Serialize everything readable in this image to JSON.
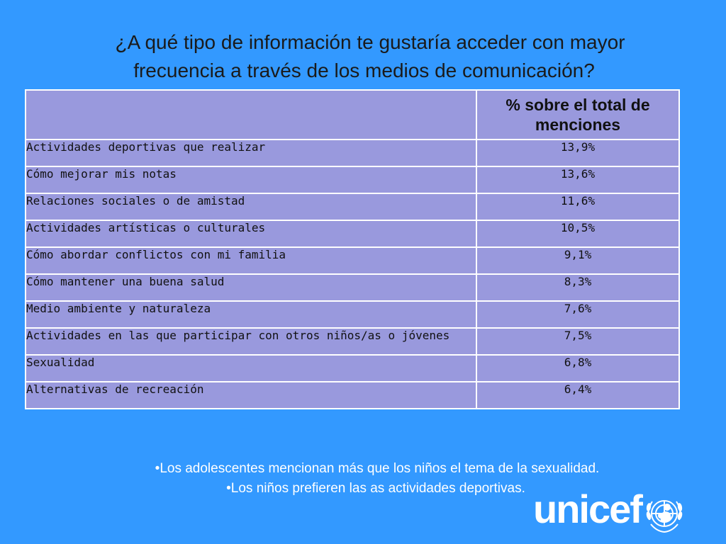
{
  "title": {
    "line1": "¿A qué tipo de información te gustaría acceder con mayor",
    "line2": "frecuencia a través de los medios de comunicación?"
  },
  "table": {
    "header_label": "",
    "header_value": "% sobre el total de menciones",
    "rows": [
      {
        "label": "Actividades deportivas que realizar",
        "value": "13,9%"
      },
      {
        "label": "Cómo mejorar mis notas",
        "value": "13,6%"
      },
      {
        "label": "Relaciones sociales o de amistad",
        "value": "11,6%"
      },
      {
        "label": "Actividades artísticas o culturales",
        "value": "10,5%"
      },
      {
        "label": "Cómo abordar conflictos con mi familia",
        "value": "9,1%"
      },
      {
        "label": "Cómo mantener una buena salud",
        "value": "8,3%"
      },
      {
        "label": "Medio ambiente y naturaleza",
        "value": "7,6%"
      },
      {
        "label": "Actividades en las que participar con otros niños/as o jóvenes",
        "value": "7,5%"
      },
      {
        "label": "Sexualidad",
        "value": "6,8%"
      },
      {
        "label": "Alternativas de recreación",
        "value": "6,4%"
      }
    ]
  },
  "notes": [
    "•Los adolescentes  mencionan más que los niños el tema de la sexualidad.",
    "•Los  niños  prefieren las as actividades deportivas."
  ],
  "logo": {
    "text": "unicef",
    "icon": "unicef-emblem-icon"
  },
  "colors": {
    "background": "#3399ff",
    "table_fill": "#9999dd",
    "table_border": "#ffffff",
    "notes_text": "#ffffff"
  }
}
